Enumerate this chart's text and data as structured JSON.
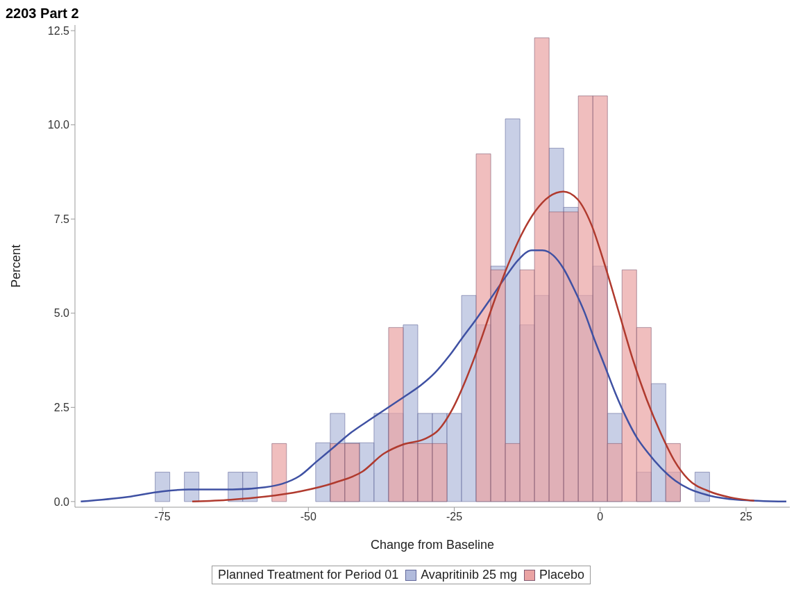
{
  "chart_data": {
    "type": "histogram",
    "title": "2203 Part 2",
    "xlabel": "Change from Baseline",
    "ylabel": "Percent",
    "legend_title": "Planned Treatment for Period 01",
    "legend": "bottom",
    "bins": [
      -76.25,
      -73.75,
      -71.25,
      -68.75,
      -66.25,
      -63.75,
      -61.25,
      -58.75,
      -56.25,
      -53.75,
      -51.25,
      -48.75,
      -46.25,
      -43.75,
      -41.25,
      -38.75,
      -36.25,
      -33.75,
      -31.25,
      -28.75,
      -26.25,
      -23.75,
      -21.25,
      -18.75,
      -16.25,
      -13.75,
      -11.25,
      -8.75,
      -6.25,
      -3.75,
      -1.25,
      1.25,
      3.75,
      6.25,
      8.75,
      11.25,
      13.75,
      16.25,
      18.75
    ],
    "series": [
      {
        "name": "Avapritinib 25 mg",
        "color": "#b1bbdc",
        "values": [
          0.78,
          0,
          0.78,
          0,
          0,
          0.78,
          0.78,
          0,
          0,
          0,
          0,
          1.56,
          2.34,
          1.56,
          1.56,
          2.34,
          2.34,
          4.69,
          2.34,
          2.34,
          2.34,
          5.47,
          4.69,
          6.25,
          10.16,
          4.69,
          5.47,
          9.38,
          7.81,
          5.47,
          6.25,
          2.34,
          0,
          0.78,
          3.13,
          0.78,
          0,
          0.78
        ]
      },
      {
        "name": "Placebo",
        "color": "#eaa3a3",
        "values": [
          0,
          0,
          0,
          0,
          0,
          0,
          0,
          0,
          1.54,
          0,
          0,
          0,
          1.54,
          1.54,
          0,
          0,
          4.62,
          1.54,
          1.54,
          1.54,
          0,
          0,
          9.23,
          6.15,
          1.54,
          6.15,
          12.31,
          7.69,
          7.69,
          10.77,
          10.77,
          1.54,
          6.15,
          4.62,
          0,
          1.54,
          0,
          0
        ]
      },
      {
        "type": "line",
        "color": "#3f51a3",
        "x": [
          -89,
          -81,
          -75,
          -70.5,
          -63,
          -57.4,
          -54.5,
          -51.5,
          -48.6,
          -45.6,
          -42.6,
          -39.6,
          -36.6,
          -33.7,
          -30.7,
          -28.3,
          -25.9,
          -23.6,
          -21.2,
          -18.8,
          -16.4,
          -14,
          -11.7,
          -9.9,
          -8,
          -6.3,
          -4.5,
          -2.7,
          -1,
          0.8,
          2.6,
          4.4,
          6.2,
          8.1,
          10.5,
          12.9,
          15.2,
          18.7,
          23.5,
          31.9
        ],
        "values": [
          0,
          0.12,
          0.27,
          0.32,
          0.32,
          0.38,
          0.47,
          0.68,
          1.06,
          1.45,
          1.84,
          2.16,
          2.47,
          2.77,
          3.09,
          3.42,
          3.86,
          4.35,
          4.85,
          5.38,
          5.92,
          6.42,
          6.67,
          6.67,
          6.53,
          6.19,
          5.65,
          5.03,
          4.31,
          3.6,
          2.88,
          2.25,
          1.72,
          1.31,
          0.88,
          0.55,
          0.34,
          0.16,
          0.05,
          0
        ]
      },
      {
        "type": "line",
        "color": "#b03a2e",
        "x": [
          -69.9,
          -63.3,
          -57.4,
          -51.4,
          -45.5,
          -40.7,
          -37.1,
          -33.7,
          -30.1,
          -27.7,
          -25.4,
          -23,
          -20.6,
          -18.2,
          -15.8,
          -13.5,
          -11.1,
          -8.7,
          -6.3,
          -3.9,
          -1.5,
          0.8,
          3.2,
          5.6,
          8,
          10.4,
          12.7,
          15.1,
          18.7,
          22.3,
          26.4
        ],
        "values": [
          0,
          0.05,
          0.13,
          0.27,
          0.5,
          0.8,
          1.27,
          1.52,
          1.66,
          1.9,
          2.43,
          3.24,
          4.22,
          5.3,
          6.28,
          7.08,
          7.71,
          8.1,
          8.23,
          8.03,
          7.35,
          6.28,
          5.03,
          3.77,
          2.7,
          1.81,
          1.09,
          0.59,
          0.27,
          0.11,
          0.02
        ]
      }
    ],
    "xlim": [
      -90,
      32.5
    ],
    "xticks": [
      -75,
      -50,
      -25,
      0,
      25
    ],
    "ylim": [
      -0.15,
      12.65
    ],
    "yticks": [
      {
        "value": 0,
        "label": "0.0"
      },
      {
        "value": 2.5,
        "label": "2.5"
      },
      {
        "value": 5,
        "label": "5.0"
      },
      {
        "value": 7.5,
        "label": "7.5"
      },
      {
        "value": 10,
        "label": "10.0"
      },
      {
        "value": 12.5,
        "label": "12.5"
      }
    ],
    "grid": false
  }
}
